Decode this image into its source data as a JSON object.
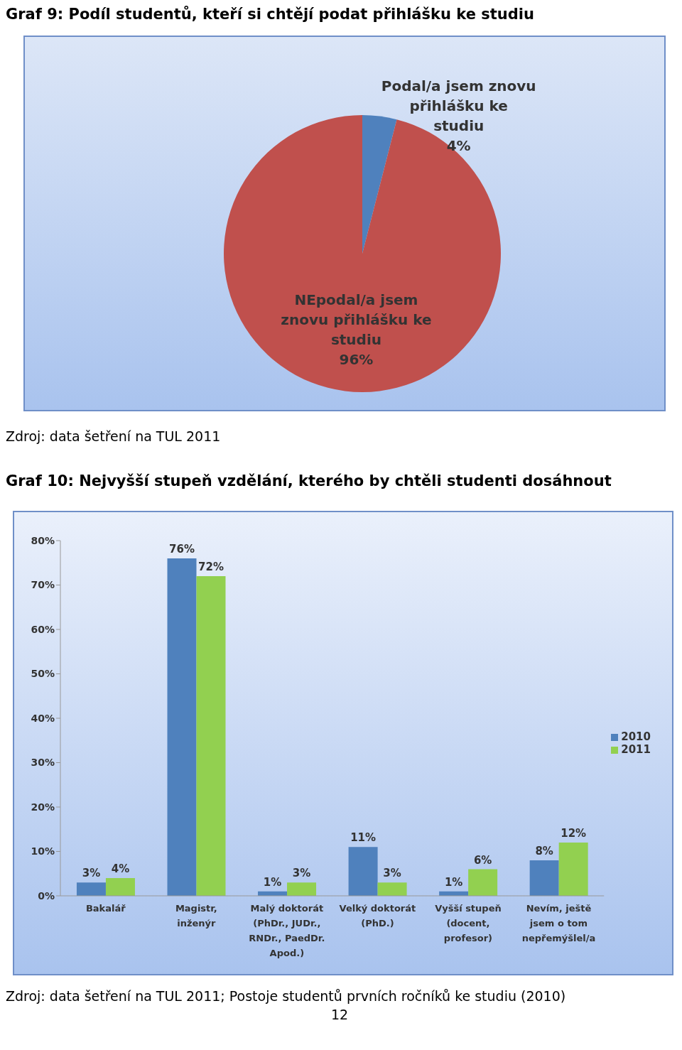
{
  "chart_data": [
    {
      "type": "pie",
      "title": "Graf 9: Podíl studentů, kteří si chtějí podat přihlášku ke studiu",
      "categories": [
        "Podal/a jsem znovu přihlášku ke studiu",
        "NEpodal/a jsem znovu přihlášku ke studiu"
      ],
      "values": [
        4,
        96
      ],
      "colors": [
        "#4f81bd",
        "#c0504d"
      ],
      "value_labels": [
        "4%",
        "96%"
      ],
      "legend": false,
      "annotations": [
        "Zdroj: data šetření na TUL 2011"
      ]
    },
    {
      "type": "bar",
      "title": "Graf 10: Nejvyšší stupeň vzdělání, kterého by chtěli studenti dosáhnout",
      "categories": [
        "Bakalář",
        "Magistr, inženýr",
        "Malý doktorát (PhDr., JUDr., RNDr., PaedDr. Apod.)",
        "Velký doktorát (PhD.)",
        "Vyšší stupeň (docent, profesor)",
        "Nevím, ještě jsem o tom nepřemýšlel/a"
      ],
      "series": [
        {
          "name": "2010",
          "color": "#4f81bd",
          "values": [
            3,
            76,
            1,
            11,
            1,
            8
          ],
          "value_labels": [
            "3%",
            "76%",
            "1%",
            "11%",
            "1%",
            "8%"
          ]
        },
        {
          "name": "2011",
          "color": "#92d050",
          "values": [
            4,
            72,
            3,
            3,
            6,
            12
          ],
          "value_labels": [
            "4%",
            "72%",
            "3%",
            "3%",
            "6%",
            "12%"
          ]
        }
      ],
      "ylim": [
        0,
        80
      ],
      "yticks": [
        {
          "value": 0,
          "label": "0%"
        },
        {
          "value": 10,
          "label": "10%"
        },
        {
          "value": 20,
          "label": "20%"
        },
        {
          "value": 30,
          "label": "30%"
        },
        {
          "value": 40,
          "label": "40%"
        },
        {
          "value": 50,
          "label": "50%"
        },
        {
          "value": 60,
          "label": "60%"
        },
        {
          "value": 70,
          "label": "70%"
        },
        {
          "value": 80,
          "label": "80%"
        }
      ],
      "grid": false,
      "legend": "right",
      "annotations": [
        "Zdroj: data šetření na TUL 2011; Postoje studentů prvních ročníků ke studiu (2010)",
        "12"
      ]
    }
  ]
}
